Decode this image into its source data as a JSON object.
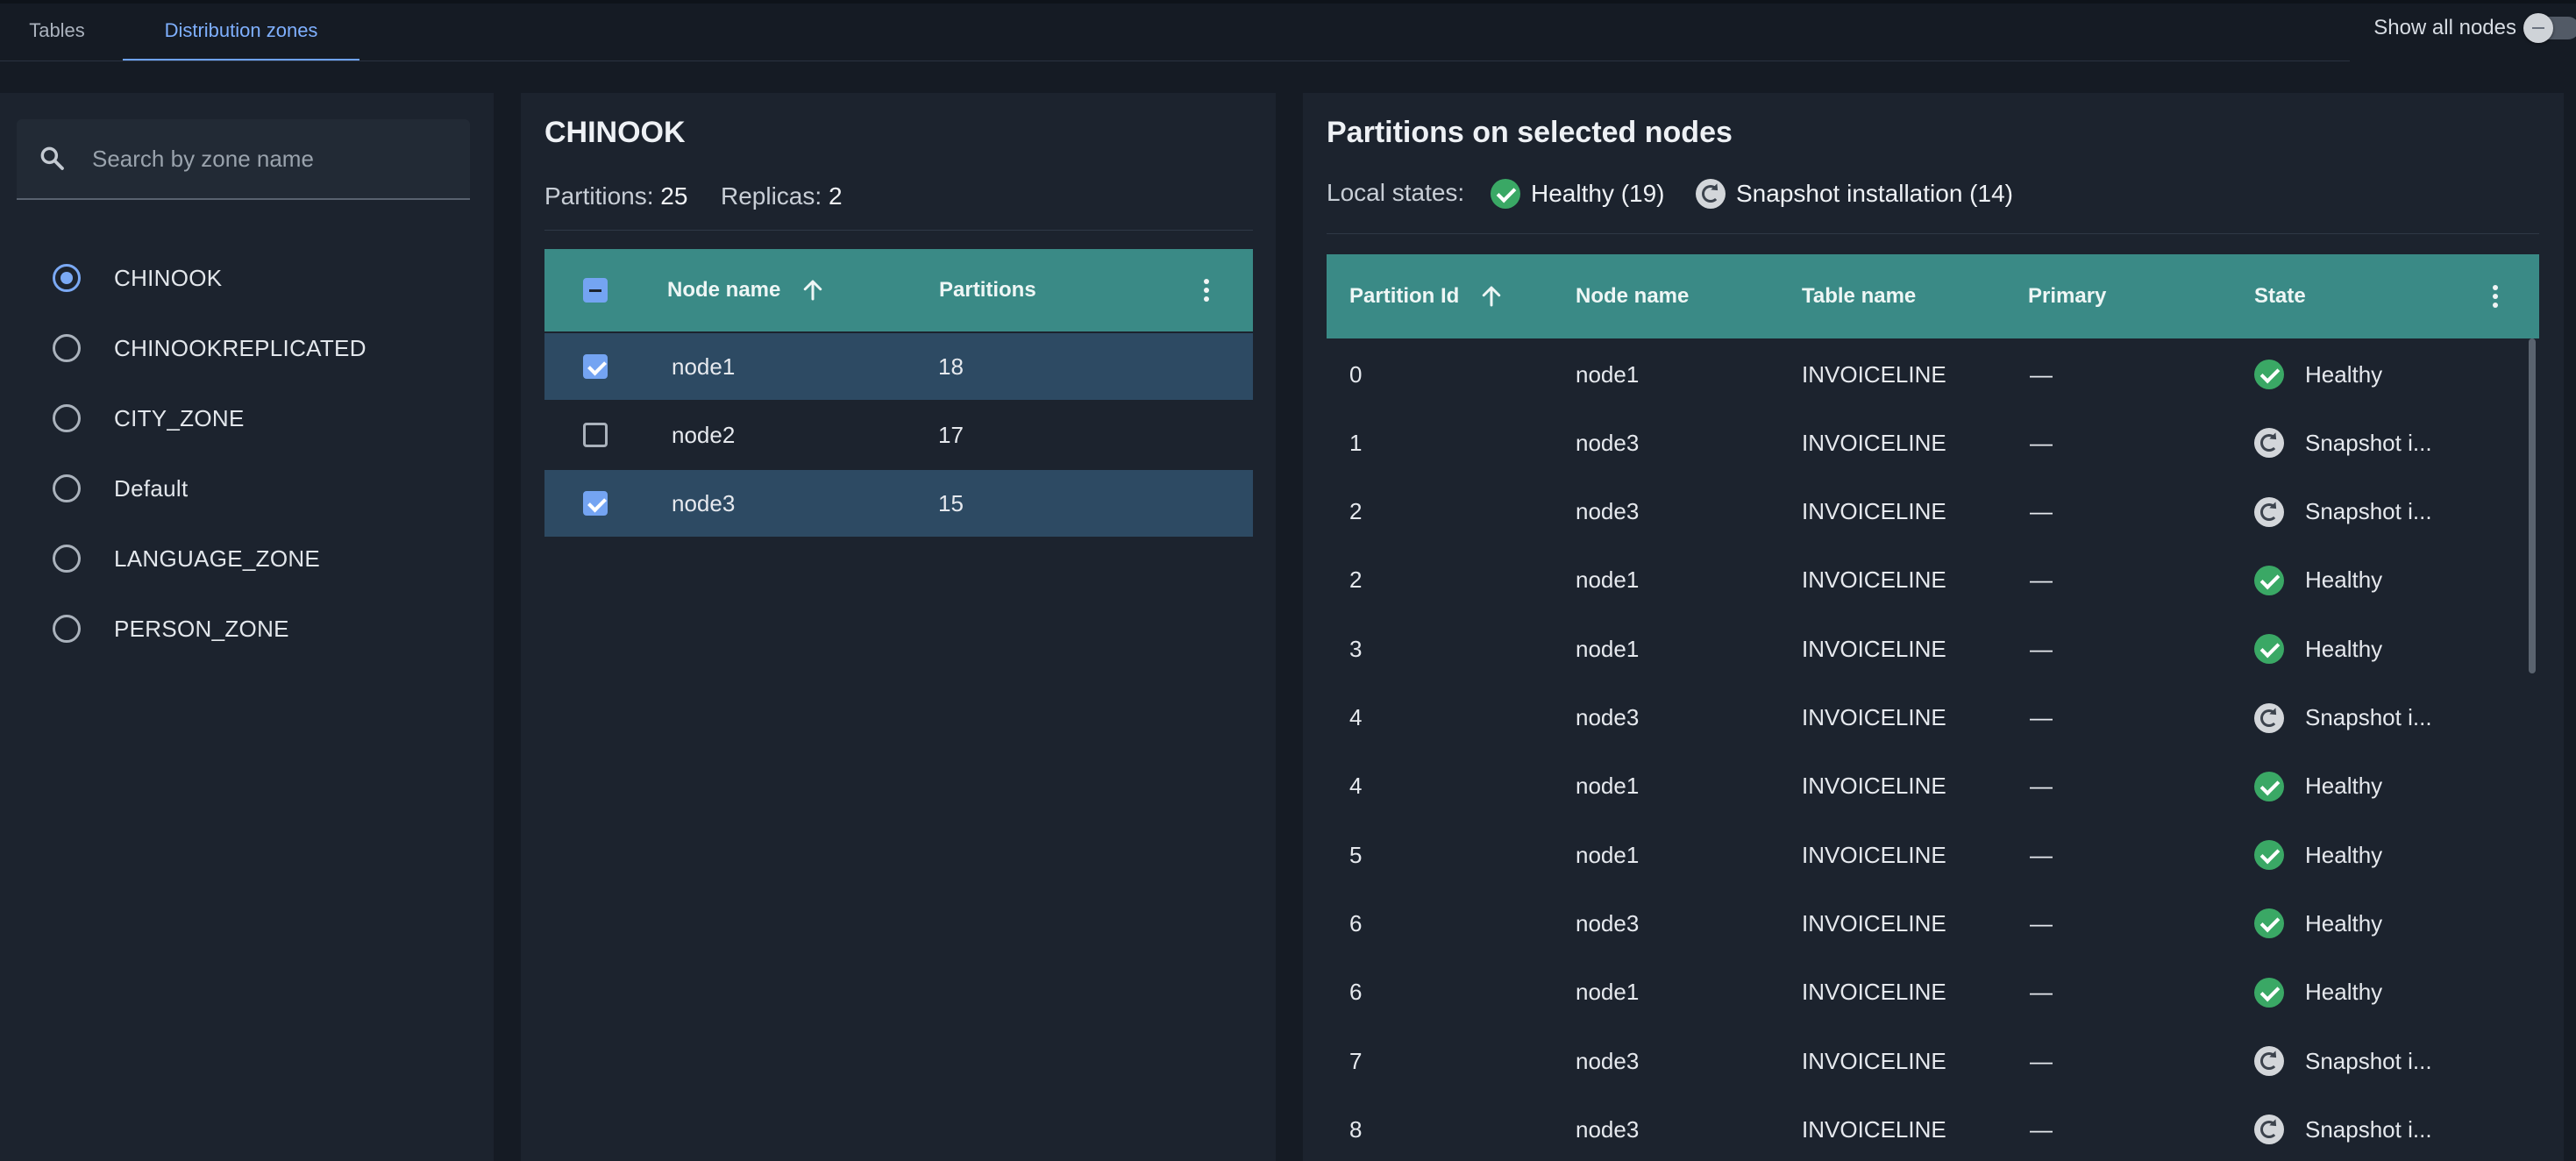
{
  "tabs": [
    {
      "label": "Tables",
      "active": false
    },
    {
      "label": "Distribution zones",
      "active": true
    }
  ],
  "show_all_nodes": {
    "label": "Show all nodes",
    "on": false
  },
  "zones": {
    "search_placeholder": "Search by zone name",
    "items": [
      {
        "label": "CHINOOK",
        "selected": true
      },
      {
        "label": "CHINOOKREPLICATED",
        "selected": false
      },
      {
        "label": "CITY_ZONE",
        "selected": false
      },
      {
        "label": "Default",
        "selected": false
      },
      {
        "label": "LANGUAGE_ZONE",
        "selected": false
      },
      {
        "label": "PERSON_ZONE",
        "selected": false
      }
    ]
  },
  "zone_detail": {
    "title": "CHINOOK",
    "partitions_label": "Partitions:",
    "partitions_value": "25",
    "replicas_label": "Replicas:",
    "replicas_value": "2",
    "columns": [
      "Node name",
      "Partitions"
    ],
    "nodes": [
      {
        "name": "node1",
        "partitions": "18",
        "selected": true
      },
      {
        "name": "node2",
        "partitions": "17",
        "selected": false
      },
      {
        "name": "node3",
        "partitions": "15",
        "selected": true
      }
    ]
  },
  "partitions_panel": {
    "title": "Partitions on selected nodes",
    "local_states_label": "Local states:",
    "legend": [
      {
        "icon": "check-circle-icon",
        "label": "Healthy (19)"
      },
      {
        "icon": "snapshot-icon",
        "label": "Snapshot installation (14)"
      }
    ],
    "columns": [
      "Partition Id",
      "Node name",
      "Table name",
      "Primary",
      "State"
    ],
    "rows": [
      {
        "id": "0",
        "node": "node1",
        "table": "INVOICELINE",
        "primary": "—",
        "state": "Healthy"
      },
      {
        "id": "1",
        "node": "node3",
        "table": "INVOICELINE",
        "primary": "—",
        "state": "Snapshot i..."
      },
      {
        "id": "2",
        "node": "node3",
        "table": "INVOICELINE",
        "primary": "—",
        "state": "Snapshot i..."
      },
      {
        "id": "2",
        "node": "node1",
        "table": "INVOICELINE",
        "primary": "—",
        "state": "Healthy"
      },
      {
        "id": "3",
        "node": "node1",
        "table": "INVOICELINE",
        "primary": "—",
        "state": "Healthy"
      },
      {
        "id": "4",
        "node": "node3",
        "table": "INVOICELINE",
        "primary": "—",
        "state": "Snapshot i..."
      },
      {
        "id": "4",
        "node": "node1",
        "table": "INVOICELINE",
        "primary": "—",
        "state": "Healthy"
      },
      {
        "id": "5",
        "node": "node1",
        "table": "INVOICELINE",
        "primary": "—",
        "state": "Healthy"
      },
      {
        "id": "6",
        "node": "node3",
        "table": "INVOICELINE",
        "primary": "—",
        "state": "Healthy"
      },
      {
        "id": "6",
        "node": "node1",
        "table": "INVOICELINE",
        "primary": "—",
        "state": "Healthy"
      },
      {
        "id": "7",
        "node": "node3",
        "table": "INVOICELINE",
        "primary": "—",
        "state": "Snapshot i..."
      },
      {
        "id": "8",
        "node": "node3",
        "table": "INVOICELINE",
        "primary": "—",
        "state": "Snapshot i..."
      }
    ]
  },
  "colors": {
    "background": "#151b24",
    "panel": "#1c232e",
    "table_header": "#3a8a86",
    "selected_row": "#2d4a63",
    "accent": "#74a4f2",
    "healthy": "#3aa865"
  }
}
